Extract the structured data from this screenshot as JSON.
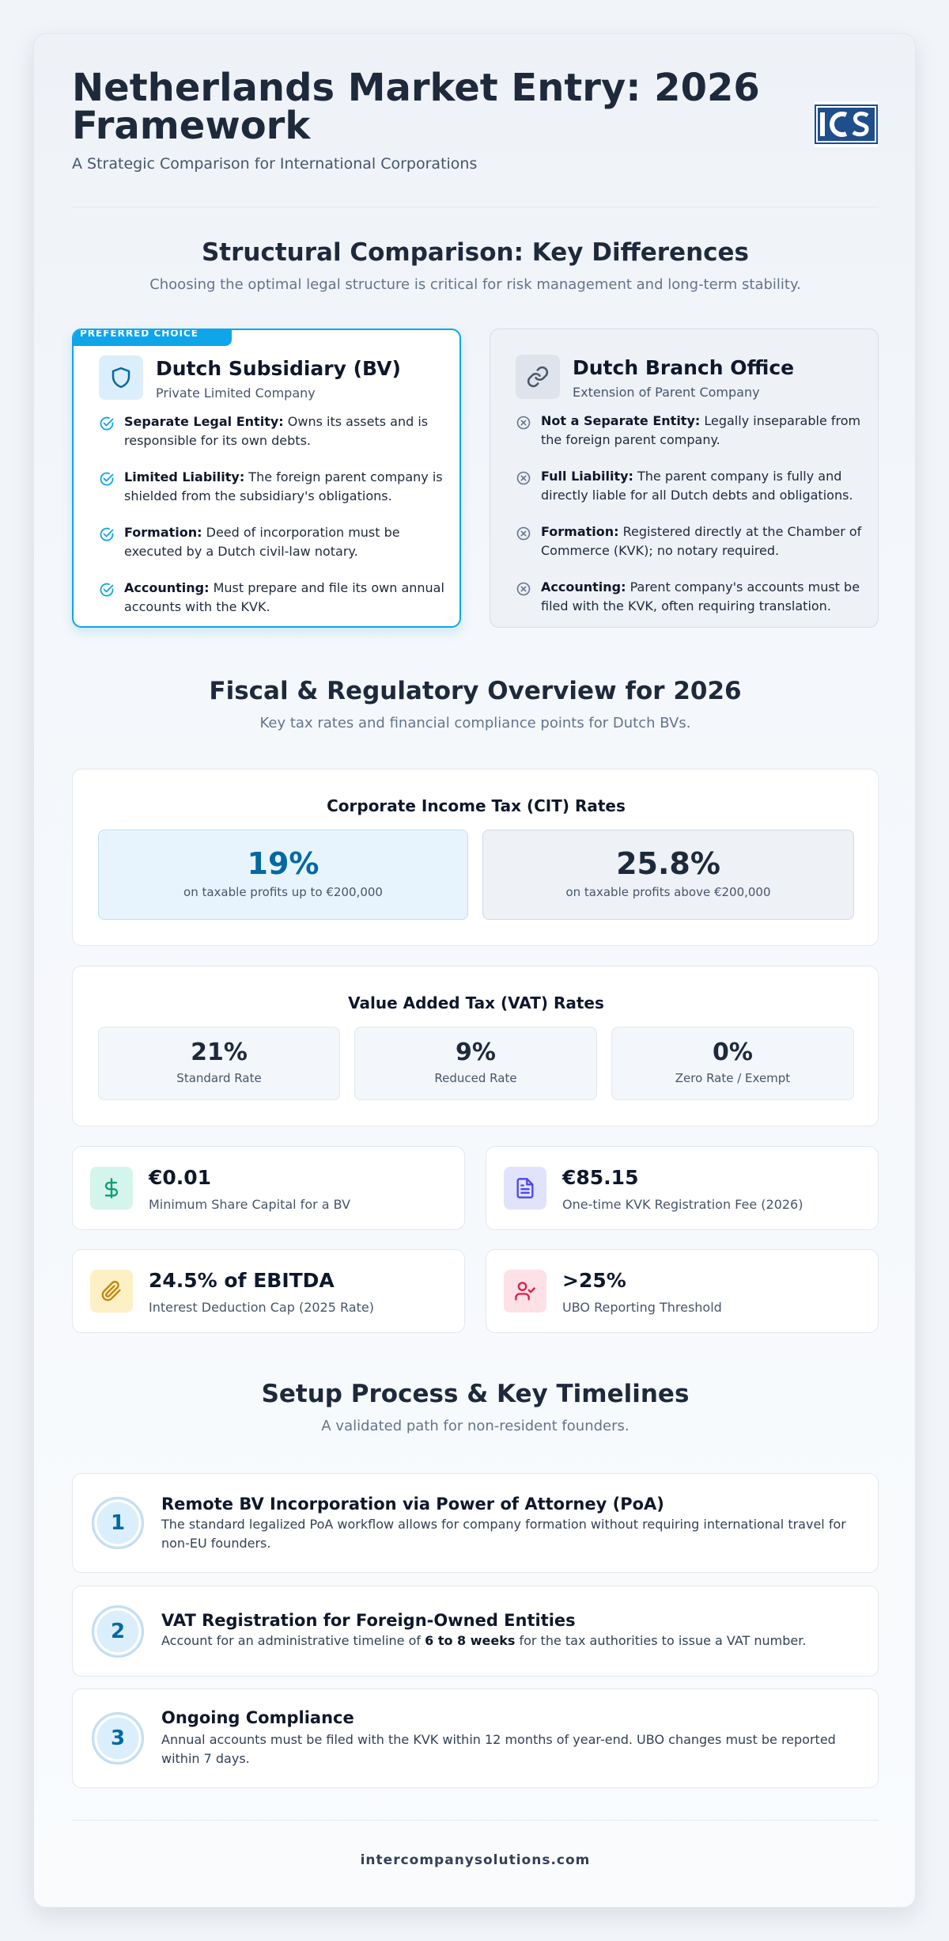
{
  "header": {
    "title": "Netherlands Market Entry: 2026 Framework",
    "subtitle": "A Strategic Comparison for International Corporations",
    "logo_text": "ICS"
  },
  "structural": {
    "title": "Structural Comparison: Key Differences",
    "subtitle": "Choosing the optimal legal structure is critical for risk management and long-term stability.",
    "subsidiary": {
      "badge": "PREFERRED CHOICE",
      "icon": "shield-icon",
      "title": "Dutch Subsidiary (BV)",
      "subtitle": "Private Limited Company",
      "items": [
        {
          "label": "Separate Legal Entity:",
          "text": " Owns its assets and is responsible for its own debts."
        },
        {
          "label": "Limited Liability:",
          "text": " The foreign parent company is shielded from the subsidiary's obligations."
        },
        {
          "label": "Formation:",
          "text": " Deed of incorporation must be executed by a Dutch civil-law notary."
        },
        {
          "label": "Accounting:",
          "text": " Must prepare and file its own annual accounts with the KVK."
        }
      ]
    },
    "branch": {
      "icon": "link-icon",
      "title": "Dutch Branch Office",
      "subtitle": "Extension of Parent Company",
      "items": [
        {
          "label": "Not a Separate Entity:",
          "text": " Legally inseparable from the foreign parent company."
        },
        {
          "label": "Full Liability:",
          "text": " The parent company is fully and directly liable for all Dutch debts and obligations."
        },
        {
          "label": "Formation:",
          "text": " Registered directly at the Chamber of Commerce (KVK); no notary required."
        },
        {
          "label": "Accounting:",
          "text": " Parent company's accounts must be filed with the KVK, often requiring translation."
        }
      ]
    }
  },
  "fiscal": {
    "title": "Fiscal & Regulatory Overview for 2026",
    "subtitle": "Key tax rates and financial compliance points for Dutch BVs.",
    "cit": {
      "title": "Corporate Income Tax (CIT) Rates",
      "rates": [
        {
          "value": "19%",
          "label": "on taxable profits up to €200,000"
        },
        {
          "value": "25.8%",
          "label": "on taxable profits above €200,000"
        }
      ]
    },
    "vat": {
      "title": "Value Added Tax (VAT) Rates",
      "rates": [
        {
          "value": "21%",
          "label": "Standard Rate"
        },
        {
          "value": "9%",
          "label": "Reduced Rate"
        },
        {
          "value": "0%",
          "label": "Zero Rate / Exempt"
        }
      ]
    },
    "stats": [
      {
        "icon": "dollar-icon",
        "value": "€0.01",
        "label": "Minimum Share Capital for a BV",
        "color": "#0f9b7a",
        "bg": "#d4f5ec"
      },
      {
        "icon": "document-icon",
        "value": "€85.15",
        "label": "One-time KVK Registration Fee (2026)",
        "color": "#4f46e5",
        "bg": "#e0e3fb"
      },
      {
        "icon": "paperclip-icon",
        "value": "24.5% of EBITDA",
        "label": "Interest Deduction Cap (2025 Rate)",
        "color": "#c2870a",
        "bg": "#fdf0c4"
      },
      {
        "icon": "user-check-icon",
        "value": ">25%",
        "label": "UBO Reporting Threshold",
        "color": "#e11d48",
        "bg": "#fde1e6"
      }
    ]
  },
  "process": {
    "title": "Setup Process & Key Timelines",
    "subtitle": "A validated path for non-resident founders.",
    "steps": [
      {
        "number": "1",
        "title": "Remote BV Incorporation via Power of Attorney (PoA)",
        "desc": "The standard legalized PoA workflow allows for company formation without requiring international travel for non-EU founders."
      },
      {
        "number": "2",
        "title": "VAT Registration for Foreign-Owned Entities",
        "desc_before": "Account for an administrative timeline of ",
        "desc_bold": "6 to 8 weeks",
        "desc_after": " for the tax authorities to issue a VAT number."
      },
      {
        "number": "3",
        "title": "Ongoing Compliance",
        "desc": "Annual accounts must be filed with the KVK within 12 months of year-end. UBO changes must be reported within 7 days."
      }
    ]
  },
  "footer": {
    "site": "intercompanysolutions.com"
  }
}
